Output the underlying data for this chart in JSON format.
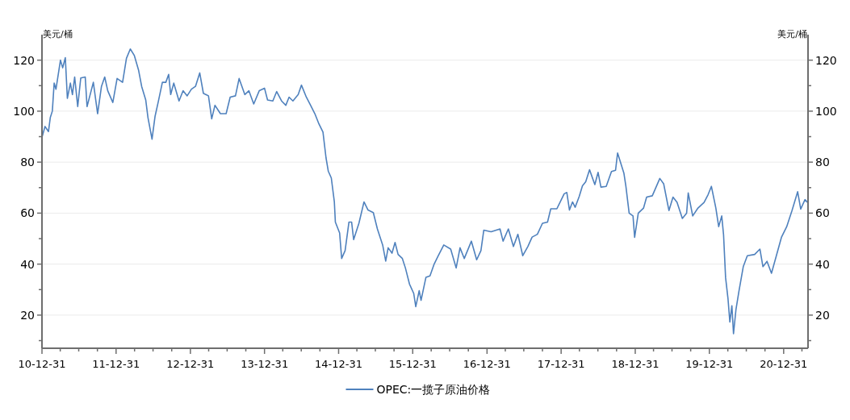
{
  "chart_data": {
    "type": "line",
    "ylabel": "美元/桶",
    "y2label": "美元/桶",
    "xlim": [
      "2010-12-31",
      "2021-04-30"
    ],
    "xticks": [
      {
        "value": "2010-12-31",
        "label": "10-12-31"
      },
      {
        "value": "2011-03-31",
        "label": null
      },
      {
        "value": "2011-06-30",
        "label": null
      },
      {
        "value": "2011-09-30",
        "label": null
      },
      {
        "value": "2011-12-31",
        "label": "11-12-31"
      },
      {
        "value": "2012-03-31",
        "label": null
      },
      {
        "value": "2012-06-30",
        "label": null
      },
      {
        "value": "2012-09-30",
        "label": null
      },
      {
        "value": "2012-12-31",
        "label": "12-12-31"
      },
      {
        "value": "2013-03-31",
        "label": null
      },
      {
        "value": "2013-06-30",
        "label": null
      },
      {
        "value": "2013-09-30",
        "label": null
      },
      {
        "value": "2013-12-31",
        "label": "13-12-31"
      },
      {
        "value": "2014-03-31",
        "label": null
      },
      {
        "value": "2014-06-30",
        "label": null
      },
      {
        "value": "2014-09-30",
        "label": null
      },
      {
        "value": "2014-12-31",
        "label": "14-12-31"
      },
      {
        "value": "2015-03-31",
        "label": null
      },
      {
        "value": "2015-06-30",
        "label": null
      },
      {
        "value": "2015-09-30",
        "label": null
      },
      {
        "value": "2015-12-31",
        "label": "15-12-31"
      },
      {
        "value": "2016-03-31",
        "label": null
      },
      {
        "value": "2016-06-30",
        "label": null
      },
      {
        "value": "2016-09-30",
        "label": null
      },
      {
        "value": "2016-12-31",
        "label": "16-12-31"
      },
      {
        "value": "2017-03-31",
        "label": null
      },
      {
        "value": "2017-06-30",
        "label": null
      },
      {
        "value": "2017-09-30",
        "label": null
      },
      {
        "value": "2017-12-31",
        "label": "17-12-31"
      },
      {
        "value": "2018-03-31",
        "label": null
      },
      {
        "value": "2018-06-30",
        "label": null
      },
      {
        "value": "2018-09-30",
        "label": null
      },
      {
        "value": "2018-12-31",
        "label": "18-12-31"
      },
      {
        "value": "2019-03-31",
        "label": null
      },
      {
        "value": "2019-06-30",
        "label": null
      },
      {
        "value": "2019-09-30",
        "label": null
      },
      {
        "value": "2019-12-31",
        "label": "19-12-31"
      },
      {
        "value": "2020-03-31",
        "label": null
      },
      {
        "value": "2020-06-30",
        "label": null
      },
      {
        "value": "2020-09-30",
        "label": null
      },
      {
        "value": "2020-12-31",
        "label": "20-12-31"
      },
      {
        "value": "2021-03-31",
        "label": null
      }
    ],
    "ylim": [
      7,
      130
    ],
    "yticks": [
      {
        "value": 10,
        "label": null
      },
      20,
      {
        "value": 30,
        "label": null
      },
      40,
      {
        "value": 50,
        "label": null
      },
      60,
      {
        "value": 70,
        "label": null
      },
      80,
      {
        "value": 90,
        "label": null
      },
      100,
      {
        "value": 110,
        "label": null
      },
      120
    ],
    "y2lim": [
      7,
      130
    ],
    "y2ticks": [
      {
        "value": 10,
        "label": null
      },
      20,
      {
        "value": 30,
        "label": null
      },
      40,
      {
        "value": 50,
        "label": null
      },
      60,
      {
        "value": 70,
        "label": null
      },
      80,
      {
        "value": 90,
        "label": null
      },
      100,
      {
        "value": 110,
        "label": null
      },
      120
    ],
    "grid": "y",
    "legend": "bottom",
    "line_style": "solid",
    "marker": "none",
    "series": [
      {
        "name": "OPEC:一揽子原油价格",
        "color": "#4f81bd",
        "x": [
          "2011-01-01",
          "2011-01-15",
          "2011-02-01",
          "2011-02-10",
          "2011-02-20",
          "2011-03-01",
          "2011-03-10",
          "2011-04-01",
          "2011-04-12",
          "2011-04-25",
          "2011-05-05",
          "2011-05-20",
          "2011-05-30",
          "2011-06-10",
          "2011-06-25",
          "2011-07-10",
          "2011-08-01",
          "2011-08-10",
          "2011-09-10",
          "2011-10-01",
          "2011-10-20",
          "2011-11-05",
          "2011-11-20",
          "2011-12-15",
          "2012-01-05",
          "2012-02-01",
          "2012-02-20",
          "2012-03-10",
          "2012-03-30",
          "2012-04-20",
          "2012-05-05",
          "2012-05-25",
          "2012-06-05",
          "2012-06-25",
          "2012-07-10",
          "2012-07-25",
          "2012-08-15",
          "2012-09-01",
          "2012-09-15",
          "2012-09-25",
          "2012-10-10",
          "2012-11-05",
          "2012-11-25",
          "2012-12-15",
          "2013-01-05",
          "2013-01-25",
          "2013-02-15",
          "2013-03-05",
          "2013-03-30",
          "2013-04-15",
          "2013-05-01",
          "2013-05-28",
          "2013-06-25",
          "2013-07-15",
          "2013-08-10",
          "2013-08-28",
          "2013-09-25",
          "2013-10-15",
          "2013-11-08",
          "2013-12-05",
          "2013-12-31",
          "2014-01-15",
          "2014-02-10",
          "2014-03-01",
          "2014-03-25",
          "2014-04-15",
          "2014-05-01",
          "2014-05-20",
          "2014-06-15",
          "2014-07-01",
          "2014-07-25",
          "2014-08-15",
          "2014-09-05",
          "2014-09-25",
          "2014-10-15",
          "2014-10-30",
          "2014-11-10",
          "2014-11-25",
          "2014-12-10",
          "2014-12-15",
          "2015-01-05",
          "2015-01-15",
          "2015-02-01",
          "2015-02-20",
          "2015-03-05",
          "2015-03-15",
          "2015-04-10",
          "2015-05-05",
          "2015-05-25",
          "2015-06-20",
          "2015-07-10",
          "2015-08-05",
          "2015-08-20",
          "2015-09-01",
          "2015-09-20",
          "2015-10-05",
          "2015-10-20",
          "2015-11-10",
          "2015-11-25",
          "2015-12-15",
          "2016-01-05",
          "2016-01-15",
          "2016-02-01",
          "2016-02-10",
          "2016-03-05",
          "2016-03-25",
          "2016-04-15",
          "2016-05-05",
          "2016-06-01",
          "2016-07-05",
          "2016-08-01",
          "2016-08-20",
          "2016-09-10",
          "2016-10-15",
          "2016-11-10",
          "2016-12-01",
          "2016-12-15",
          "2017-01-20",
          "2017-03-05",
          "2017-03-20",
          "2017-04-15",
          "2017-05-10",
          "2017-06-01",
          "2017-06-25",
          "2017-07-20",
          "2017-08-10",
          "2017-09-05",
          "2017-09-30",
          "2017-10-25",
          "2017-11-10",
          "2017-12-10",
          "2018-01-15",
          "2018-01-28",
          "2018-02-10",
          "2018-02-25",
          "2018-03-10",
          "2018-03-30",
          "2018-04-15",
          "2018-05-01",
          "2018-05-20",
          "2018-06-15",
          "2018-07-01",
          "2018-07-15",
          "2018-08-10",
          "2018-09-05",
          "2018-09-25",
          "2018-10-05",
          "2018-11-05",
          "2018-11-15",
          "2018-12-01",
          "2018-12-20",
          "2018-12-28",
          "2019-01-15",
          "2019-02-10",
          "2019-02-25",
          "2019-03-25",
          "2019-05-01",
          "2019-05-20",
          "2019-06-15",
          "2019-07-05",
          "2019-07-25",
          "2019-08-20",
          "2019-09-10",
          "2019-09-18",
          "2019-10-10",
          "2019-11-05",
          "2019-12-05",
          "2019-12-25",
          "2020-01-10",
          "2020-02-01",
          "2020-02-15",
          "2020-03-01",
          "2020-03-10",
          "2020-03-20",
          "2020-04-01",
          "2020-04-10",
          "2020-04-20",
          "2020-04-28",
          "2020-05-10",
          "2020-05-25",
          "2020-06-15",
          "2020-07-05",
          "2020-08-10",
          "2020-09-05",
          "2020-09-20",
          "2020-10-10",
          "2020-11-01",
          "2020-11-25",
          "2020-12-20",
          "2021-01-15",
          "2021-02-10",
          "2021-03-10",
          "2021-03-25",
          "2021-04-15",
          "2021-04-28"
        ],
        "values": [
          90,
          94,
          92,
          97.5,
          100,
          111,
          108.6,
          120,
          117,
          121,
          105,
          111,
          106.5,
          113.4,
          101.8,
          113,
          113.4,
          101.8,
          111.3,
          99,
          109.7,
          113.4,
          108,
          103.4,
          112.8,
          111.3,
          120.7,
          124.4,
          121.8,
          116,
          109.7,
          104.4,
          97.5,
          89,
          98,
          103.4,
          111.3,
          111.3,
          114.4,
          106.5,
          111,
          104,
          108,
          106,
          108.6,
          109.7,
          115,
          107,
          106,
          97,
          102.3,
          99,
          99,
          105.5,
          106,
          112.8,
          106.5,
          108,
          102.8,
          108,
          109,
          104.4,
          104,
          107.7,
          104,
          102.3,
          105.5,
          104,
          106.5,
          110.2,
          105.5,
          102.3,
          99,
          95,
          91.8,
          81.7,
          76.5,
          73.8,
          64.4,
          56.5,
          52.2,
          42.2,
          45.3,
          56.5,
          56.5,
          49.6,
          56,
          64.4,
          61.2,
          60.2,
          53.8,
          47.5,
          41.2,
          46.4,
          44.3,
          48.5,
          43.8,
          42.2,
          38.5,
          32.2,
          28.5,
          23.3,
          29.6,
          25.8,
          34.8,
          35.4,
          40.1,
          43.3,
          47.5,
          45.9,
          38.5,
          46.4,
          42.2,
          49,
          41.7,
          45.3,
          53.3,
          52.7,
          53.8,
          49,
          53.8,
          46.9,
          51.7,
          43.3,
          46.9,
          50.6,
          51.7,
          56,
          56.5,
          61.7,
          61.7,
          67.6,
          68.1,
          61.2,
          64.4,
          62.3,
          66.5,
          70.7,
          72.3,
          77,
          71.2,
          76,
          70.2,
          70.5,
          76.3,
          76.8,
          83.6,
          75.7,
          70.5,
          60,
          58.9,
          50.5,
          60,
          62,
          66.3,
          66.8,
          73.6,
          71.5,
          61,
          66.3,
          64.2,
          57.9,
          60,
          67.9,
          58.9,
          62,
          64.2,
          67.3,
          70.5,
          62,
          54.7,
          58.9,
          51.5,
          34.7,
          26.3,
          17.3,
          23.7,
          12.7,
          22.1,
          29.5,
          39,
          43.3,
          43.8,
          45.9,
          39,
          41.1,
          36.4,
          43.3,
          50.5,
          54.7,
          61,
          68.4,
          61.6,
          65.3,
          64.2
        ]
      }
    ]
  }
}
